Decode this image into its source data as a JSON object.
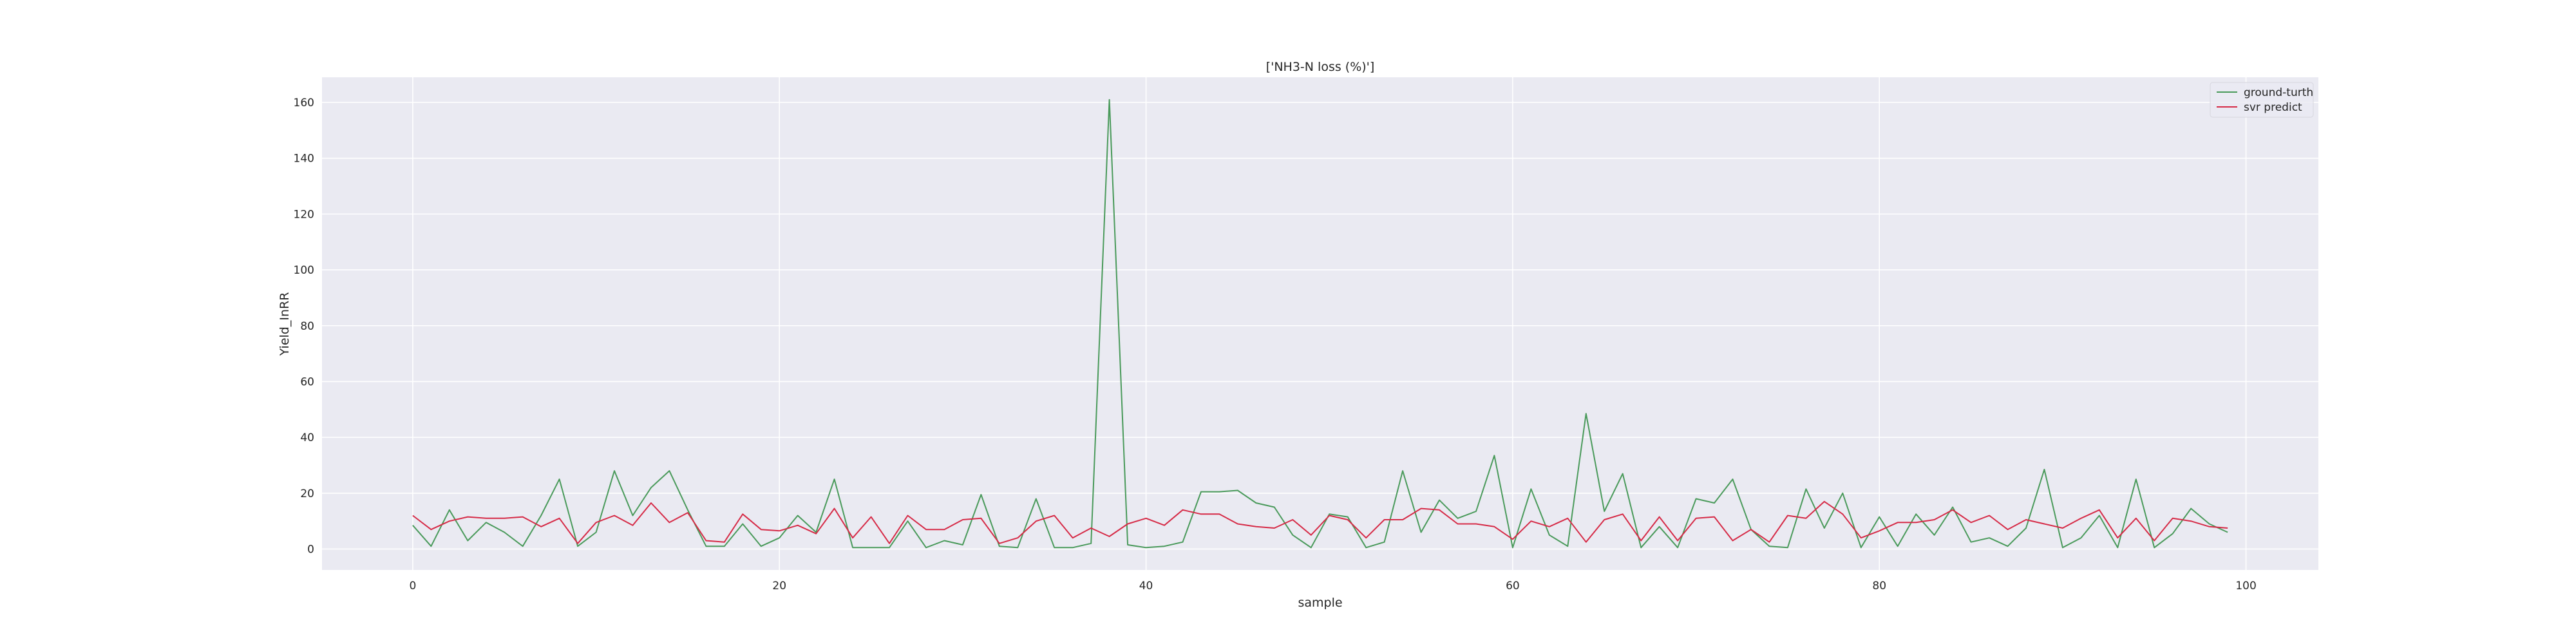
{
  "chart_data": {
    "type": "line",
    "title": "['NH3-N loss (%)']",
    "xlabel": "sample",
    "ylabel": "Yield_InRR",
    "xlim": [
      -4.95,
      103.95
    ],
    "ylim": [
      -7.5,
      169
    ],
    "xticks": [
      0,
      20,
      40,
      60,
      80,
      100
    ],
    "yticks": [
      0,
      20,
      40,
      60,
      80,
      100,
      120,
      140,
      160
    ],
    "grid": true,
    "legend_position": "top-right",
    "colors": {
      "background": "#eaeaf2",
      "grid": "#ffffff"
    },
    "x": [
      0,
      1,
      2,
      3,
      4,
      5,
      6,
      7,
      8,
      9,
      10,
      11,
      12,
      13,
      14,
      15,
      16,
      17,
      18,
      19,
      20,
      21,
      22,
      23,
      24,
      25,
      26,
      27,
      28,
      29,
      30,
      31,
      32,
      33,
      34,
      35,
      36,
      37,
      38,
      39,
      40,
      41,
      42,
      43,
      44,
      45,
      46,
      47,
      48,
      49,
      50,
      51,
      52,
      53,
      54,
      55,
      56,
      57,
      58,
      59,
      60,
      61,
      62,
      63,
      64,
      65,
      66,
      67,
      68,
      69,
      70,
      71,
      72,
      73,
      74,
      75,
      76,
      77,
      78,
      79,
      80,
      81,
      82,
      83,
      84,
      85,
      86,
      87,
      88,
      89,
      90,
      91,
      92,
      93,
      94,
      95,
      96,
      97,
      98,
      99
    ],
    "series": [
      {
        "name": "ground-turth",
        "color": "#4a9a5b",
        "values": [
          8.5,
          1,
          14,
          3,
          9.5,
          6,
          1,
          12,
          25,
          1,
          6,
          28,
          12,
          22,
          28,
          14,
          1,
          1,
          9,
          1,
          4,
          12,
          6,
          25,
          0.5,
          0.5,
          0.5,
          10,
          0.5,
          3,
          1.5,
          19.5,
          1,
          0.5,
          18,
          0.5,
          0.5,
          2,
          161,
          1.5,
          0.5,
          1,
          2.5,
          20.5,
          20.5,
          21,
          16.5,
          15,
          5,
          0.5,
          12.5,
          11.5,
          0.5,
          2.5,
          28,
          6,
          17.5,
          11,
          13.5,
          33.5,
          0.5,
          21.5,
          5,
          1,
          48.5,
          13.5,
          27,
          0.5,
          8,
          0.5,
          18,
          16.5,
          25,
          7,
          1,
          0.5,
          21.5,
          7.5,
          20,
          0.5,
          11.5,
          1,
          12.5,
          5,
          15,
          2.5,
          4,
          1,
          7.5,
          28.5,
          0.5,
          4,
          12,
          0.5,
          25,
          0.5,
          5.5,
          14.5,
          9,
          6
        ]
      },
      {
        "name": "svr predict",
        "color": "#d62b47",
        "values": [
          12,
          7,
          10,
          11.5,
          11,
          11,
          11.5,
          8,
          11,
          2,
          9.5,
          12,
          8.5,
          16.5,
          9.5,
          13,
          3,
          2.5,
          12.5,
          7,
          6.5,
          8.5,
          5.5,
          14.5,
          4,
          11.5,
          2,
          12,
          7,
          7,
          10.5,
          11,
          2,
          4,
          10,
          12,
          4,
          7.5,
          4.5,
          9,
          11,
          8.5,
          14,
          12.5,
          12.5,
          9,
          8,
          7.5,
          10.5,
          5,
          12,
          10.5,
          4,
          10.5,
          10.5,
          14.5,
          14,
          9,
          9,
          8,
          3.5,
          10,
          8,
          11,
          2.5,
          10.5,
          12.5,
          3,
          11.5,
          3,
          11,
          11.5,
          3,
          7,
          2.5,
          12,
          11,
          17,
          12.5,
          4,
          6.5,
          9.5,
          9.5,
          10.5,
          14,
          9.5,
          12,
          7,
          10.5,
          9,
          7.5,
          11,
          14,
          4,
          11,
          3,
          11,
          10,
          8,
          7.5
        ]
      }
    ]
  }
}
